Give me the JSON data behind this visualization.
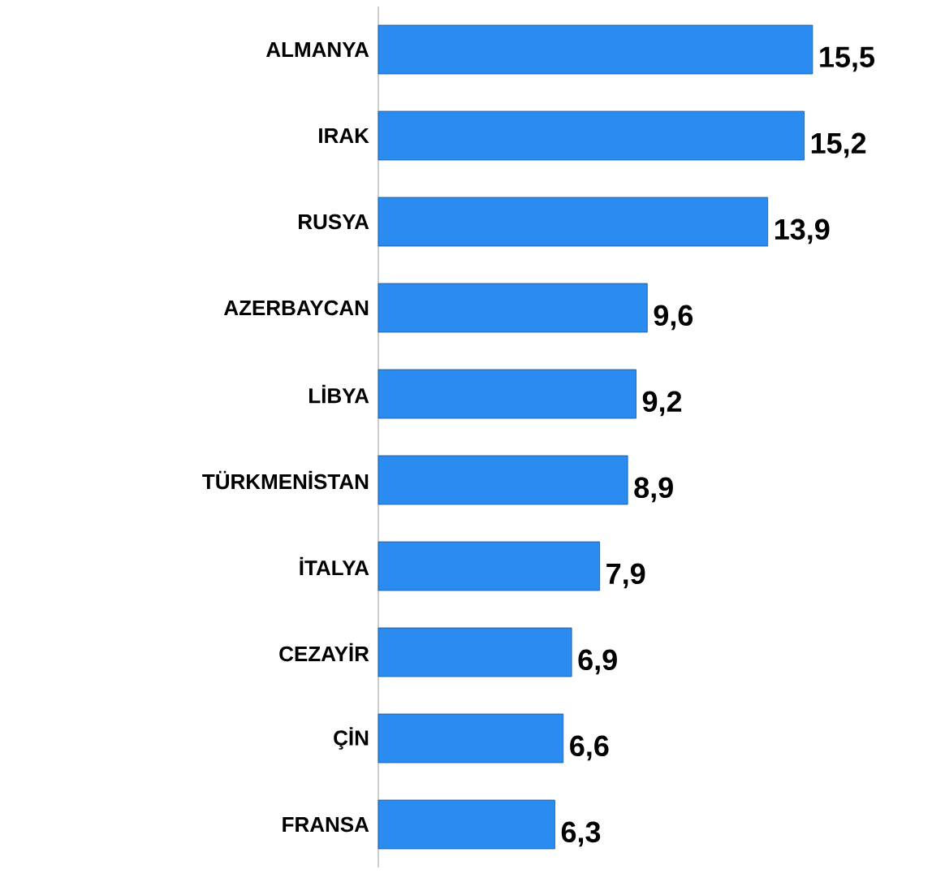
{
  "chart_data": {
    "type": "bar",
    "orientation": "horizontal",
    "categories": [
      "ALMANYA",
      "IRAK",
      "RUSYA",
      "AZERBAYCAN",
      "LİBYA",
      "TÜRKMENİSTAN",
      "İTALYA",
      "CEZAYİR",
      "ÇİN",
      "FRANSA"
    ],
    "values": [
      15.5,
      15.2,
      13.9,
      9.6,
      9.2,
      8.9,
      7.9,
      6.9,
      6.6,
      6.3
    ],
    "value_labels": [
      "15,5",
      "15,2",
      "13,9",
      "9,6",
      "9,2",
      "8,9",
      "7,9",
      "6,9",
      "6,6",
      "6,3"
    ],
    "color": "#2a8cf0"
  }
}
